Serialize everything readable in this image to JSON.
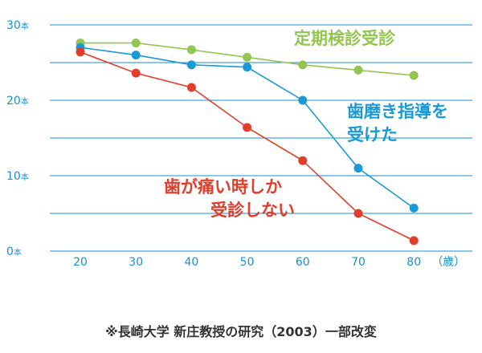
{
  "chart_data": {
    "type": "line",
    "categories": [
      "20",
      "30",
      "40",
      "50",
      "60",
      "70",
      "80"
    ],
    "x_unit_label": "（歳）",
    "y_unit_label": "本",
    "y_ticks": [
      0,
      10,
      20,
      30
    ],
    "ylim": [
      0,
      30
    ],
    "grid": true,
    "series": [
      {
        "name_lines": [
          "定期検診受診"
        ],
        "color": "#93c550",
        "values": [
          27.6,
          27.6,
          26.7,
          25.7,
          24.7,
          24.0,
          23.3
        ]
      },
      {
        "name_lines": [
          "歯磨き指導を",
          "受けた"
        ],
        "color": "#1b9ad6",
        "values": [
          27.0,
          26.0,
          24.7,
          24.4,
          20.0,
          11.0,
          5.7
        ]
      },
      {
        "name_lines": [
          "歯が痛い時しか",
          "受診しない"
        ],
        "color": "#e23d2a",
        "values": [
          26.4,
          23.6,
          21.7,
          16.4,
          12.0,
          5.0,
          1.4
        ]
      }
    ]
  },
  "source": "※長崎大学 新庄教授の研究（2003）一部改変"
}
